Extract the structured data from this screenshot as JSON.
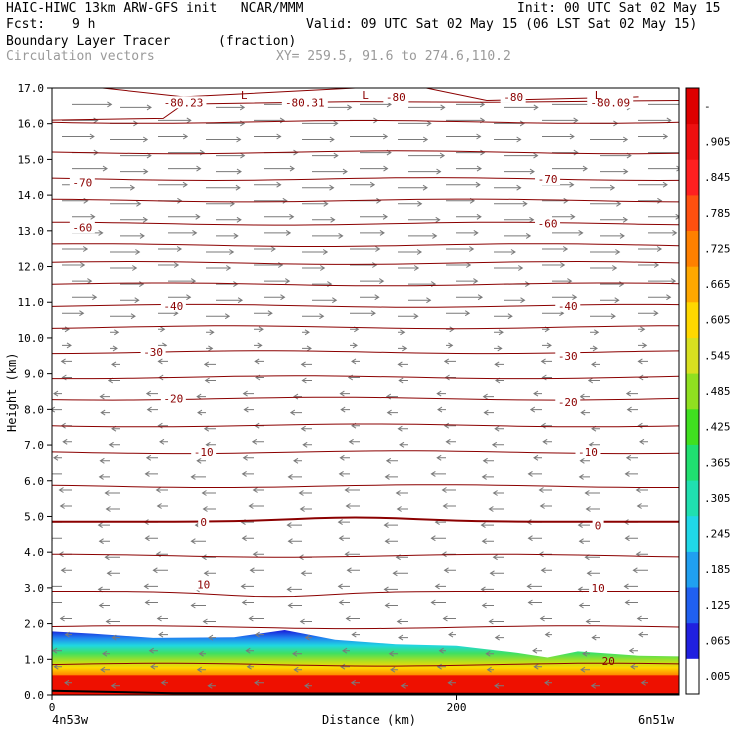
{
  "header": {
    "line1_left": "HAIC-HIWC 13km ARW-GFS init   NCAR/MMM",
    "init": "Init: 00 UTC Sat 02 May 15",
    "fcst_label": "Fcst:",
    "fcst_value": "9 h",
    "valid": "Valid: 09 UTC Sat 02 May 15 (06 LST Sat 02 May 15)",
    "field_name": "Boundary Layer Tracer",
    "field_units": "(fraction)",
    "vector_label": "Circulation vectors",
    "xy_label": "XY= 259.5, 91.6 to 274.6,110.2"
  },
  "chart_data": {
    "type": "heatmap",
    "ylabel": "Height (km)",
    "xlabel": "Distance (km)",
    "ylim": [
      0,
      17
    ],
    "xlim": [
      0,
      310
    ],
    "y_ticks": [
      "0.0",
      "1.0",
      "2.0",
      "3.0",
      "4.0",
      "5.0",
      "6.0",
      "7.0",
      "8.0",
      "9.0",
      "10.0",
      "11.0",
      "12.0",
      "13.0",
      "14.0",
      "15.0",
      "16.0",
      "17.0"
    ],
    "x_ticks": [
      {
        "value": 0,
        "label": "0"
      },
      {
        "value": 200,
        "label": "200"
      }
    ],
    "x_endpoints": {
      "left": "4n53w",
      "right": "6n51w"
    },
    "colorbar": {
      "labels": [
        ".005",
        ".065",
        ".125",
        ".185",
        ".245",
        ".305",
        ".365",
        ".425",
        ".485",
        ".545",
        ".605",
        ".665",
        ".725",
        ".785",
        ".845",
        ".905",
        "-"
      ],
      "colors": [
        "#ffffff",
        "#2020e0",
        "#2060f0",
        "#20a0f0",
        "#20d8e8",
        "#20e0b0",
        "#20e070",
        "#40e020",
        "#90e020",
        "#d8e020",
        "#ffd800",
        "#ffa800",
        "#ff8000",
        "#ff5010",
        "#ff2020",
        "#ee1010",
        "#dd0000"
      ]
    },
    "isotherm_labels": [
      {
        "text": "-80.23",
        "x": 65,
        "y": 16.6
      },
      {
        "text": "-80.31",
        "x": 125,
        "y": 16.6
      },
      {
        "text": "-80",
        "x": 170,
        "y": 16.75
      },
      {
        "text": "-80",
        "x": 228,
        "y": 16.75
      },
      {
        "text": "-80.09",
        "x": 276,
        "y": 16.6
      },
      {
        "text": "-70",
        "x": 15,
        "y": 14.35
      },
      {
        "text": "-70",
        "x": 245,
        "y": 14.45
      },
      {
        "text": "-60",
        "x": 15,
        "y": 13.1
      },
      {
        "text": "-60",
        "x": 245,
        "y": 13.2
      },
      {
        "text": "-40",
        "x": 60,
        "y": 10.9
      },
      {
        "text": "-40",
        "x": 255,
        "y": 10.9
      },
      {
        "text": "-30",
        "x": 50,
        "y": 9.6
      },
      {
        "text": "-30",
        "x": 255,
        "y": 9.5
      },
      {
        "text": "-20",
        "x": 60,
        "y": 8.3
      },
      {
        "text": "-20",
        "x": 255,
        "y": 8.2
      },
      {
        "text": "-10",
        "x": 75,
        "y": 6.8
      },
      {
        "text": "-10",
        "x": 265,
        "y": 6.8
      },
      {
        "text": "0",
        "x": 75,
        "y": 4.85
      },
      {
        "text": "0",
        "x": 270,
        "y": 4.75
      },
      {
        "text": "10",
        "x": 75,
        "y": 3.1
      },
      {
        "text": "10",
        "x": 270,
        "y": 3.0
      },
      {
        "text": "20",
        "x": 275,
        "y": 0.95
      }
    ],
    "low_markers": [
      {
        "text": "L",
        "x": 95,
        "y": 16.8
      },
      {
        "text": "L",
        "x": 155,
        "y": 16.8
      },
      {
        "text": "L",
        "x": 270,
        "y": 16.8
      }
    ]
  }
}
